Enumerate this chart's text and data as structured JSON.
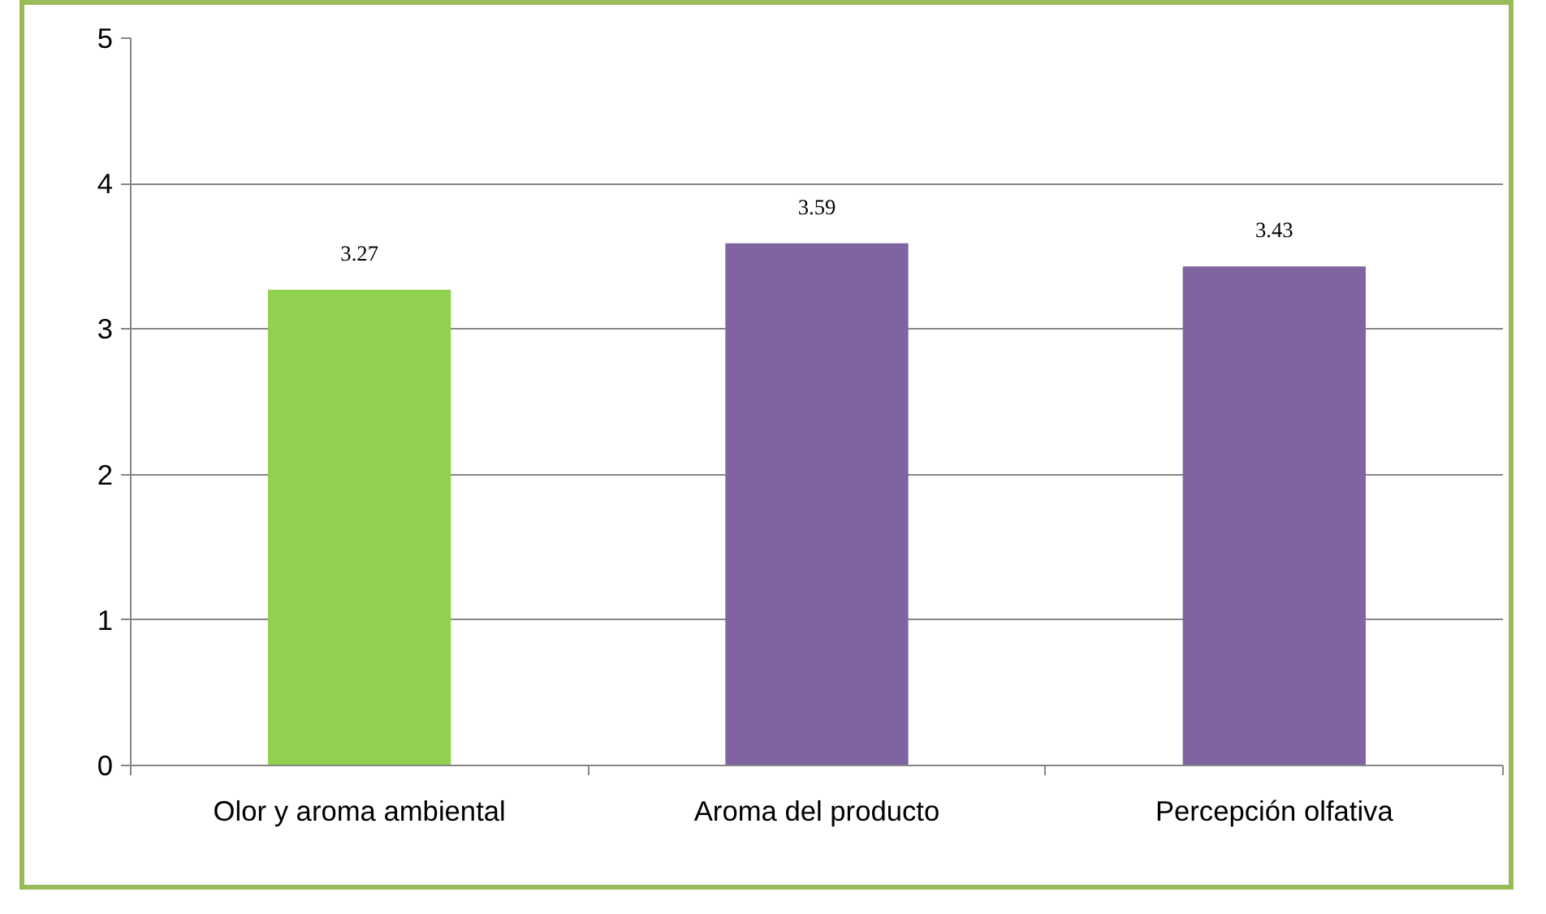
{
  "chart_data": {
    "type": "bar",
    "categories": [
      "Olor y aroma ambiental",
      "Aroma del producto",
      "Percepción olfativa"
    ],
    "values": [
      3.27,
      3.59,
      3.43
    ],
    "colors": [
      "#92d050",
      "#8064a2",
      "#8064a2"
    ],
    "ylim": [
      0,
      5
    ],
    "yticks": [
      0,
      1,
      2,
      3,
      4,
      5
    ],
    "grid": "y",
    "data_labels": true
  }
}
